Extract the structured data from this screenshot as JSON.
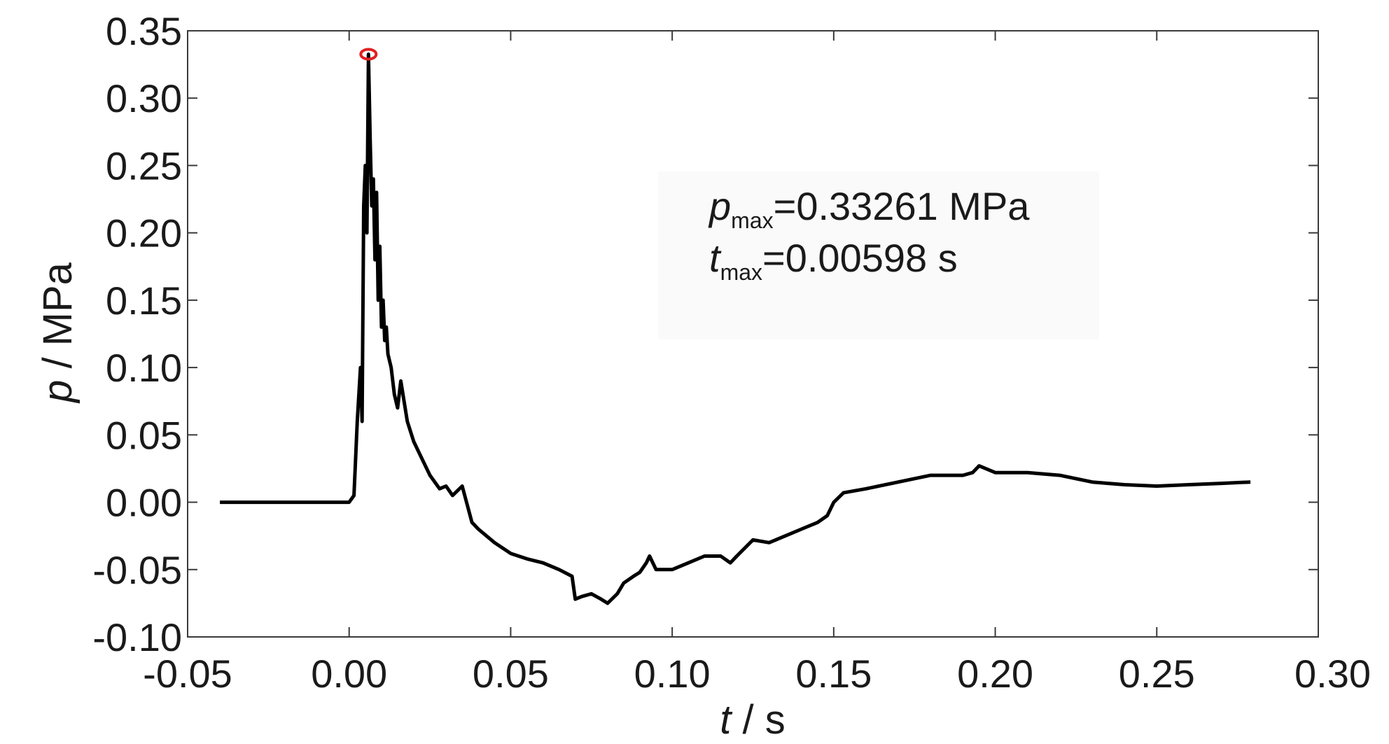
{
  "chart_data": {
    "type": "line",
    "xlabel_var": "t",
    "xlabel_unit": " / s",
    "ylabel_var": "p",
    "ylabel_unit": " / MPa",
    "xlim": [
      -0.05,
      0.3
    ],
    "ylim": [
      -0.1,
      0.35
    ],
    "xticks": [
      "-0.05",
      "0.00",
      "0.05",
      "0.10",
      "0.15",
      "0.20",
      "0.25",
      "0.30"
    ],
    "yticks": [
      "-0.10",
      "-0.05",
      "0.00",
      "0.05",
      "0.10",
      "0.15",
      "0.20",
      "0.25",
      "0.30",
      "0.35"
    ],
    "grid": false,
    "line_color": "#000000",
    "marker_color": "#e02020",
    "peak": {
      "t": 0.00598,
      "p": 0.33261
    },
    "annotation": {
      "p_var": "p",
      "p_sub": "max",
      "p_text": "=0.33261 MPa",
      "t_var": "t",
      "t_sub": "max",
      "t_text": "=0.00598 s"
    },
    "series": [
      {
        "x": [
          -0.04,
          -0.03,
          -0.02,
          -0.01,
          0.0,
          0.0015,
          0.0025,
          0.0035,
          0.004,
          0.0045,
          0.005,
          0.0055,
          0.00598,
          0.0065,
          0.007,
          0.0075,
          0.008,
          0.0085,
          0.009,
          0.0095,
          0.01,
          0.0105,
          0.011,
          0.0115,
          0.012,
          0.013,
          0.014,
          0.015,
          0.016,
          0.018,
          0.02,
          0.022,
          0.025,
          0.028,
          0.03,
          0.032,
          0.035,
          0.038,
          0.04,
          0.045,
          0.05,
          0.055,
          0.06,
          0.065,
          0.069,
          0.07,
          0.072,
          0.075,
          0.078,
          0.08,
          0.083,
          0.085,
          0.088,
          0.09,
          0.092,
          0.093,
          0.095,
          0.1,
          0.105,
          0.11,
          0.115,
          0.118,
          0.12,
          0.125,
          0.13,
          0.135,
          0.14,
          0.145,
          0.148,
          0.15,
          0.153,
          0.16,
          0.17,
          0.18,
          0.19,
          0.193,
          0.195,
          0.2,
          0.21,
          0.22,
          0.23,
          0.24,
          0.25,
          0.26,
          0.27,
          0.279
        ],
        "y": [
          0.0,
          0.0,
          0.0,
          0.0,
          0.0,
          0.005,
          0.06,
          0.1,
          0.06,
          0.22,
          0.25,
          0.2,
          0.33261,
          0.27,
          0.22,
          0.24,
          0.18,
          0.23,
          0.15,
          0.19,
          0.13,
          0.15,
          0.12,
          0.13,
          0.11,
          0.1,
          0.08,
          0.07,
          0.09,
          0.06,
          0.045,
          0.035,
          0.02,
          0.01,
          0.012,
          0.005,
          0.012,
          -0.015,
          -0.02,
          -0.03,
          -0.038,
          -0.042,
          -0.045,
          -0.05,
          -0.055,
          -0.072,
          -0.07,
          -0.068,
          -0.072,
          -0.075,
          -0.068,
          -0.06,
          -0.055,
          -0.052,
          -0.045,
          -0.04,
          -0.05,
          -0.05,
          -0.045,
          -0.04,
          -0.04,
          -0.045,
          -0.04,
          -0.028,
          -0.03,
          -0.025,
          -0.02,
          -0.015,
          -0.01,
          0.0,
          0.007,
          0.01,
          0.015,
          0.02,
          0.02,
          0.022,
          0.027,
          0.022,
          0.022,
          0.02,
          0.015,
          0.013,
          0.012,
          0.013,
          0.014,
          0.015
        ]
      }
    ]
  }
}
